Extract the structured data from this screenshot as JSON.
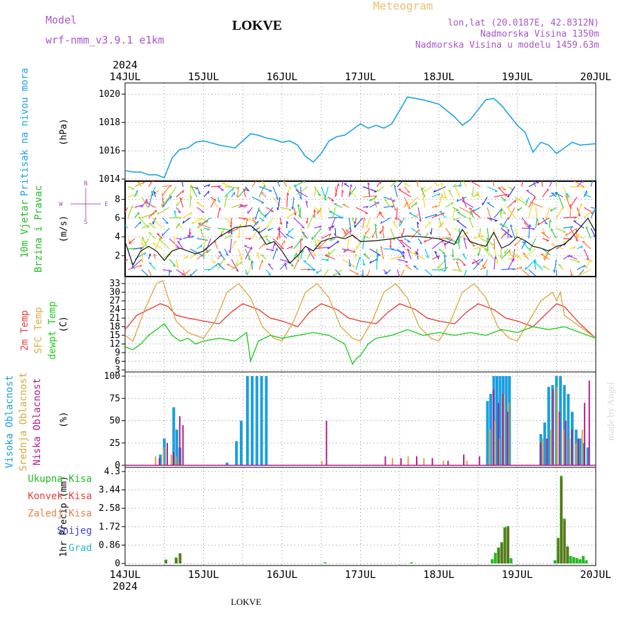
{
  "header": {
    "model_label": "Model",
    "model_name": "wrf-nmm_v3.9.1 e1km",
    "station": "LOKVE",
    "meteogram": "Meteogram",
    "lonlat": "lon,lat (20.0187E, 42.8312N)",
    "altitude": "Nadmorska Visina 1350m",
    "model_altitude": "Nadmorska Visina u modelu 1459.63m",
    "footer_station": "LOKVE",
    "watermark": "made by Angel"
  },
  "time_axis": {
    "year": "2024",
    "day_labels": [
      "14JUL",
      "15JUL",
      "16JUL",
      "17JUL",
      "18JUL",
      "19JUL",
      "20JUL"
    ]
  },
  "colors": {
    "pressure": "#1ba3e6",
    "temp": "#e8403a",
    "sfc_temp": "#ddaa44",
    "dewpt": "#22cc22",
    "high_cloud": "#1a9ee0",
    "mid_cloud": "#d9a63c",
    "low_cloud": "#b01c8c",
    "total_rain": "#22bb22",
    "conv_rain": "#e83c3c",
    "frz_rain": "#f08040",
    "snow": "#4040e0",
    "hail": "#22bbbb",
    "grid": "#888888",
    "wind_cyan": "#00c8e8"
  },
  "chart_data": [
    {
      "type": "line",
      "id": "pressure",
      "title_lines": [
        "Pritisak na nivou mora"
      ],
      "unit": "(hPa)",
      "ylim": [
        1014,
        1020.5
      ],
      "ticks": [
        "1014",
        "1016",
        "1018",
        "1020"
      ],
      "grid": true,
      "series": [
        {
          "name": "Pritisak na nivou mora",
          "x": [
            0,
            0.1,
            0.2,
            0.3,
            0.4,
            0.5,
            0.6,
            0.7,
            0.8,
            0.9,
            1.0,
            1.2,
            1.4,
            1.6,
            1.7,
            1.8,
            1.9,
            2.0,
            2.1,
            2.2,
            2.3,
            2.4,
            2.5,
            2.6,
            2.7,
            2.8,
            2.9,
            3.0,
            3.1,
            3.2,
            3.3,
            3.4,
            3.6,
            3.8,
            4.0,
            4.2,
            4.3,
            4.4,
            4.6,
            4.7,
            4.8,
            4.9,
            5.0,
            5.1,
            5.2,
            5.3,
            5.4,
            5.5,
            5.6,
            5.7,
            5.8,
            6.0
          ],
          "values": [
            1014.6,
            1014.5,
            1014.5,
            1014.3,
            1014.3,
            1014.1,
            1015.5,
            1016.1,
            1016.2,
            1016.6,
            1016.7,
            1016.4,
            1016.2,
            1017.2,
            1017.1,
            1016.9,
            1016.8,
            1016.6,
            1016.7,
            1016.4,
            1015.6,
            1015.2,
            1015.8,
            1016.7,
            1017.0,
            1017.1,
            1017.5,
            1017.9,
            1017.6,
            1017.8,
            1017.6,
            1017.9,
            1019.8,
            1019.6,
            1019.3,
            1018.4,
            1017.8,
            1018.2,
            1019.6,
            1019.7,
            1019.2,
            1018.5,
            1017.8,
            1017.3,
            1015.9,
            1016.6,
            1016.4,
            1015.8,
            1016.2,
            1016.6,
            1016.4,
            1016.5
          ]
        }
      ]
    },
    {
      "type": "line",
      "id": "wind",
      "title_lines": [
        "10m Vjetar",
        "Brzina i Pravac"
      ],
      "unit": "(m/s)",
      "compass": {
        "n": "N",
        "s": "S",
        "w": "W",
        "e": "E"
      },
      "ylim": [
        0,
        9.5
      ],
      "ticks": [
        "2",
        "4",
        "6",
        "8"
      ],
      "grid": true,
      "series": [
        {
          "name": "Brzina",
          "x": [
            0,
            0.1,
            0.2,
            0.3,
            0.4,
            0.5,
            0.6,
            0.7,
            0.8,
            0.9,
            1.0,
            1.2,
            1.4,
            1.6,
            1.7,
            1.8,
            1.9,
            2.0,
            2.1,
            2.2,
            2.3,
            2.4,
            2.5,
            2.6,
            2.7,
            2.8,
            2.9,
            3.0,
            3.2,
            3.4,
            3.6,
            3.8,
            4.0,
            4.2,
            4.3,
            4.4,
            4.5,
            4.6,
            4.7,
            4.8,
            4.9,
            5.0,
            5.1,
            5.2,
            5.3,
            5.4,
            5.5,
            5.6,
            5.7,
            5.8,
            5.9,
            6.0
          ],
          "values": [
            3.5,
            1.0,
            2.5,
            3.0,
            2.5,
            1.5,
            2.5,
            2.8,
            2.5,
            2.2,
            2.5,
            4.0,
            5.0,
            5.2,
            4.5,
            3.2,
            3.5,
            2.5,
            1.2,
            2.0,
            3.0,
            2.5,
            3.5,
            3.8,
            4.0,
            3.8,
            4.2,
            3.5,
            3.6,
            3.8,
            4.1,
            4.0,
            3.8,
            3.2,
            4.8,
            3.5,
            3.2,
            3.0,
            4.5,
            2.8,
            3.2,
            4.0,
            3.6,
            3.0,
            2.8,
            2.5,
            3.0,
            3.2,
            4.0,
            5.0,
            6.0,
            4.5
          ]
        }
      ]
    },
    {
      "type": "line",
      "id": "temperature",
      "title_lines": [
        "2m Temp",
        "SFC Temp",
        "dewpt Temp"
      ],
      "unit": "(C)",
      "ylim": [
        3,
        34
      ],
      "ticks": [
        "3",
        "6",
        "9",
        "12",
        "15",
        "18",
        "21",
        "24",
        "27",
        "30",
        "33"
      ],
      "grid": true,
      "series": [
        {
          "name": "2m Temp",
          "x": [
            0,
            0.15,
            0.3,
            0.45,
            0.55,
            0.65,
            0.8,
            1.0,
            1.2,
            1.35,
            1.5,
            1.7,
            1.85,
            2.0,
            2.2,
            2.35,
            2.5,
            2.7,
            2.85,
            3.0,
            3.2,
            3.35,
            3.5,
            3.7,
            3.85,
            4.0,
            4.2,
            4.35,
            4.5,
            4.7,
            4.85,
            5.0,
            5.2,
            5.35,
            5.5,
            5.6,
            5.8,
            6.0
          ],
          "values": [
            17,
            22,
            24,
            26,
            25,
            22,
            21,
            20,
            19,
            23,
            26,
            24,
            21,
            20,
            18,
            23,
            26,
            24,
            21,
            20,
            19,
            23,
            26,
            24,
            21,
            20,
            19,
            23,
            26,
            24,
            21,
            20,
            18,
            22,
            26,
            25,
            19,
            14
          ]
        },
        {
          "name": "SFC Temp",
          "x": [
            0,
            0.1,
            0.25,
            0.4,
            0.48,
            0.55,
            0.65,
            0.8,
            1.0,
            1.15,
            1.3,
            1.45,
            1.6,
            1.75,
            1.9,
            2.0,
            2.15,
            2.3,
            2.45,
            2.6,
            2.75,
            2.9,
            3.0,
            3.15,
            3.3,
            3.45,
            3.6,
            3.75,
            3.9,
            4.0,
            4.15,
            4.3,
            4.45,
            4.6,
            4.75,
            4.9,
            5.0,
            5.15,
            5.3,
            5.45,
            5.5,
            5.55,
            5.6,
            5.7,
            5.85,
            6.0
          ],
          "values": [
            15,
            13,
            24,
            33,
            34,
            28,
            20,
            16,
            14,
            20,
            30,
            33,
            28,
            18,
            14,
            13,
            20,
            30,
            33,
            28,
            18,
            14,
            13,
            20,
            30,
            33,
            28,
            18,
            14,
            13,
            20,
            30,
            33,
            28,
            18,
            14,
            13,
            20,
            27,
            30,
            27,
            30,
            22,
            20,
            17,
            14
          ]
        },
        {
          "name": "dewpt Temp",
          "x": [
            0,
            0.1,
            0.2,
            0.3,
            0.4,
            0.5,
            0.6,
            0.7,
            0.8,
            0.9,
            1.0,
            1.2,
            1.4,
            1.55,
            1.6,
            1.7,
            1.85,
            2.0,
            2.2,
            2.4,
            2.6,
            2.8,
            2.9,
            2.95,
            3.0,
            3.1,
            3.2,
            3.4,
            3.6,
            3.8,
            4.0,
            4.2,
            4.4,
            4.6,
            4.8,
            5.0,
            5.2,
            5.4,
            5.6,
            5.8,
            6.0
          ],
          "values": [
            11,
            10,
            12,
            15,
            17,
            19,
            15,
            13,
            14,
            12,
            13,
            14,
            13,
            16,
            6,
            13,
            15,
            14,
            15,
            16,
            15,
            12,
            5,
            7,
            8,
            12,
            14,
            15,
            17,
            15,
            16,
            15,
            16,
            15,
            17,
            16,
            18,
            17,
            18,
            16,
            14
          ]
        }
      ]
    },
    {
      "type": "bar",
      "id": "clouds",
      "title_lines": [
        "Visoka Oblacnost",
        "Srednja Oblacnost",
        "Niska Oblacnost"
      ],
      "unit": "(%)",
      "ylim": [
        0,
        100
      ],
      "ticks": [
        "0",
        "25",
        "50",
        "75",
        "100"
      ],
      "grid": true,
      "series": [
        {
          "name": "Visoka Oblacnost",
          "x": [
            0.45,
            0.5,
            0.62,
            0.66,
            0.7,
            1.3,
            1.42,
            1.48,
            1.56,
            1.62,
            1.68,
            1.74,
            1.8,
            4.62,
            4.66,
            4.7,
            4.74,
            4.78,
            4.82,
            4.86,
            4.9,
            5.3,
            5.35,
            5.4,
            5.45,
            5.5,
            5.55,
            5.6,
            5.65,
            5.7,
            5.75,
            5.8,
            5.85,
            5.9
          ],
          "values": [
            12,
            30,
            65,
            40,
            20,
            3,
            27,
            50,
            100,
            100,
            100,
            100,
            100,
            72,
            80,
            100,
            100,
            100,
            100,
            100,
            100,
            35,
            48,
            88,
            90,
            100,
            100,
            90,
            80,
            60,
            40,
            30,
            25,
            20
          ]
        },
        {
          "name": "Srednja Oblacnost",
          "x": [
            0.38,
            0.48,
            0.58,
            0.64,
            0.68,
            2.5,
            3.4,
            3.6,
            3.8,
            4.05,
            4.35,
            4.64,
            4.7,
            4.76,
            4.82,
            4.88,
            5.32,
            5.42,
            5.5,
            5.58,
            5.66,
            5.74,
            5.82
          ],
          "values": [
            10,
            20,
            12,
            10,
            5,
            5,
            8,
            10,
            8,
            5,
            5,
            40,
            50,
            30,
            80,
            70,
            30,
            40,
            88,
            40,
            30,
            25,
            40
          ]
        },
        {
          "name": "Niska Oblacnost",
          "x": [
            0.42,
            0.52,
            0.6,
            0.68,
            0.72,
            2.55,
            3.3,
            3.5,
            3.7,
            3.9,
            4.1,
            4.3,
            4.5,
            4.68,
            4.74,
            4.8,
            4.86,
            5.28,
            5.36,
            5.44,
            5.52,
            5.6,
            5.68,
            5.76,
            5.84,
            5.9
          ],
          "values": [
            8,
            25,
            15,
            55,
            45,
            50,
            10,
            8,
            10,
            8,
            5,
            12,
            10,
            85,
            70,
            80,
            60,
            25,
            30,
            85,
            60,
            50,
            40,
            30,
            70,
            95
          ]
        }
      ]
    },
    {
      "type": "bar",
      "id": "precip",
      "title_lines": [
        "Ukupna Kisa",
        "Konvek.Kisa",
        "Zaledj.Kisa",
        "Snijeg",
        "Grad"
      ],
      "unit": "1hr Precip (mm)",
      "ylim": [
        0,
        4.3
      ],
      "ticks": [
        "0",
        "0.86",
        "1.72",
        "2.58",
        "3.44",
        "4.3"
      ],
      "grid": true,
      "series": [
        {
          "name": "Ukupna Kisa",
          "x": [
            0.52,
            0.65,
            0.7,
            2.55,
            3.65,
            4.68,
            4.72,
            4.76,
            4.8,
            4.84,
            4.88,
            4.92,
            5.48,
            5.52,
            5.56,
            5.6,
            5.64,
            5.68,
            5.72,
            5.76,
            5.8,
            5.84,
            5.88
          ],
          "values": [
            0.18,
            0.28,
            0.48,
            0.05,
            0.05,
            0.2,
            0.5,
            0.75,
            1.0,
            1.7,
            1.75,
            0.25,
            0.15,
            1.2,
            4.1,
            2.1,
            0.8,
            0.35,
            0.3,
            0.25,
            0.2,
            0.35,
            0.15
          ]
        },
        {
          "name": "Konvek.Kisa",
          "x": [
            0.52,
            0.65,
            0.7,
            4.76,
            4.8,
            4.84,
            4.88,
            5.52,
            5.56,
            5.6,
            5.64
          ],
          "values": [
            0.15,
            0.25,
            0.45,
            0.7,
            0.95,
            1.65,
            1.7,
            1.15,
            4.0,
            2.0,
            0.75
          ]
        }
      ]
    }
  ]
}
